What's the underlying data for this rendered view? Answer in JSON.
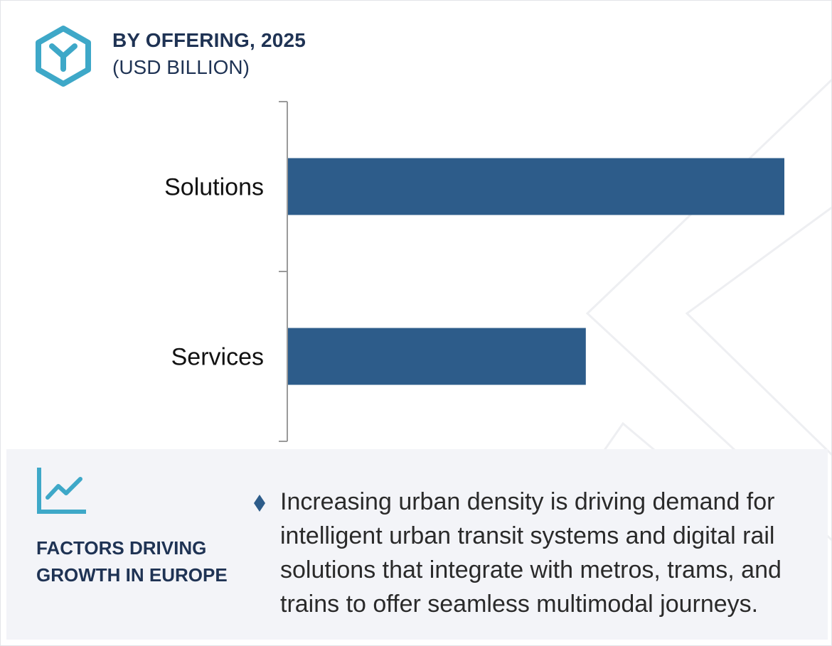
{
  "header": {
    "title": "BY OFFERING, 2025",
    "subtitle": "(USD BILLION)",
    "icon": "hexagon-y-logo-icon"
  },
  "colors": {
    "bar": "#2d5c8a",
    "accent": "#3ea8c8",
    "heading": "#1f3354",
    "panel_bg": "#f3f4f8"
  },
  "chart_data": {
    "type": "bar",
    "orientation": "horizontal",
    "categories": [
      "Solutions",
      "Services"
    ],
    "values": [
      100,
      60
    ],
    "title": "BY OFFERING, 2025",
    "subtitle": "(USD BILLION)",
    "xlabel": "",
    "ylabel": "",
    "xlim": [
      0,
      100
    ],
    "grid": false,
    "value_labels_shown": false
  },
  "factors": {
    "heading": "FACTORS DRIVING GROWTH IN EUROPE",
    "icon": "trend-line-chart-icon",
    "bullet_icon": "diamond-bullet-icon",
    "bullets": [
      "Increasing urban density is driving demand for intelligent urban transit systems and digital rail solutions that integrate with metros, trams, and trains to offer seamless multimodal journeys."
    ]
  }
}
